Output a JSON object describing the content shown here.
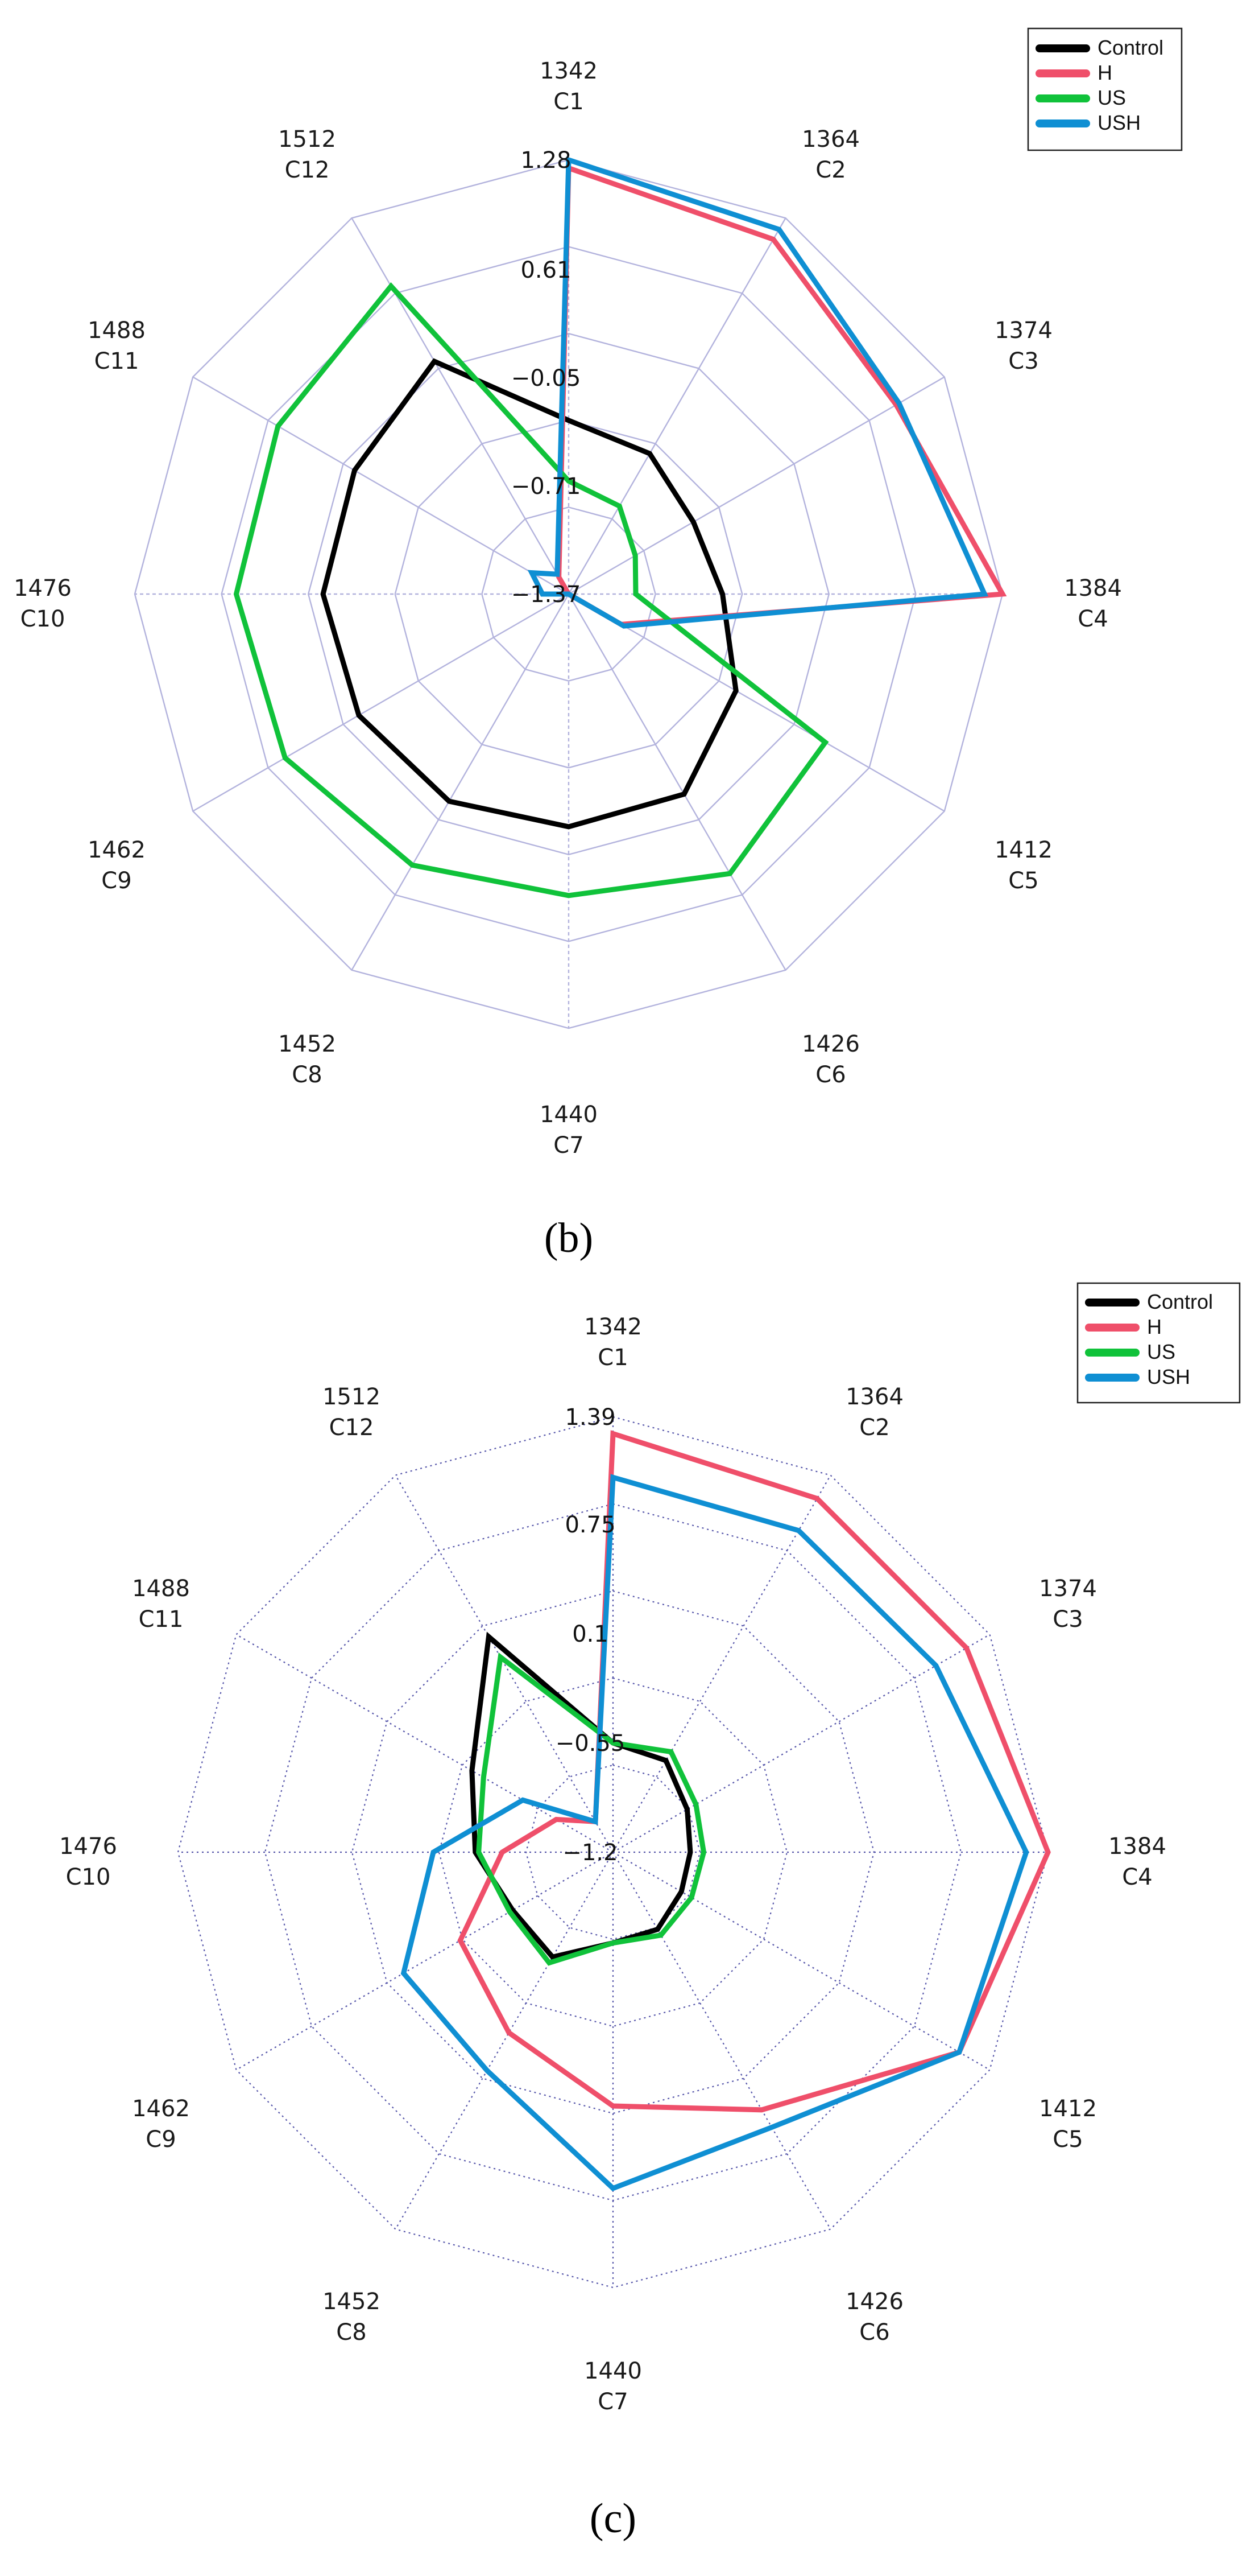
{
  "figure": {
    "panels": [
      "b",
      "c"
    ]
  },
  "chart_data": [
    {
      "panel_label": "(b)",
      "panel_letter": "b",
      "type": "radar",
      "title": "",
      "axes": [
        {
          "id": "C1",
          "wavenumber": "1342"
        },
        {
          "id": "C2",
          "wavenumber": "1364"
        },
        {
          "id": "C3",
          "wavenumber": "1374"
        },
        {
          "id": "C4",
          "wavenumber": "1384"
        },
        {
          "id": "C5",
          "wavenumber": "1412"
        },
        {
          "id": "C6",
          "wavenumber": "1426"
        },
        {
          "id": "C7",
          "wavenumber": "1440"
        },
        {
          "id": "C8",
          "wavenumber": "1452"
        },
        {
          "id": "C9",
          "wavenumber": "1462"
        },
        {
          "id": "C10",
          "wavenumber": "1476"
        },
        {
          "id": "C11",
          "wavenumber": "1488"
        },
        {
          "id": "C12",
          "wavenumber": "1512"
        }
      ],
      "rmin": -1.37,
      "rmax": 1.28,
      "ticks": [
        1.28,
        0.61,
        -0.05,
        -0.71,
        -1.37
      ],
      "tick_labels": [
        "1.28",
        "0.61",
        "−0.05",
        "−0.71",
        "−1.37"
      ],
      "grid_rings": 5,
      "legend": {
        "position": "top-right",
        "entries": [
          "Control",
          "H",
          "US",
          "USH"
        ]
      },
      "series": [
        {
          "name": "Control",
          "color": "#000000",
          "values": [
            -0.31,
            -0.38,
            -0.49,
            -0.43,
            -0.19,
            0.04,
            0.05,
            0.09,
            0.11,
            0.13,
            0.14,
            0.27
          ]
        },
        {
          "name": "H",
          "color": "#ef4f6a",
          "values": [
            1.23,
            1.13,
            0.94,
            1.28,
            -1.0,
            -1.37,
            -1.37,
            -1.37,
            -1.37,
            -1.37,
            -1.37,
            -1.25
          ]
        },
        {
          "name": "US",
          "color": "#10c23a",
          "values": [
            -0.68,
            -0.75,
            -0.9,
            -0.96,
            0.44,
            0.6,
            0.47,
            0.54,
            0.63,
            0.66,
            0.68,
            0.8
          ]
        },
        {
          "name": "USH",
          "color": "#0f8fd3",
          "values": [
            1.28,
            1.2,
            0.96,
            1.17,
            -0.98,
            -1.37,
            -1.37,
            -1.37,
            -1.37,
            -1.21,
            -1.11,
            -1.23
          ]
        }
      ]
    },
    {
      "panel_label": "(c)",
      "panel_letter": "c",
      "type": "radar",
      "title": "",
      "axes": [
        {
          "id": "C1",
          "wavenumber": "1342"
        },
        {
          "id": "C2",
          "wavenumber": "1364"
        },
        {
          "id": "C3",
          "wavenumber": "1374"
        },
        {
          "id": "C4",
          "wavenumber": "1384"
        },
        {
          "id": "C5",
          "wavenumber": "1412"
        },
        {
          "id": "C6",
          "wavenumber": "1426"
        },
        {
          "id": "C7",
          "wavenumber": "1440"
        },
        {
          "id": "C8",
          "wavenumber": "1452"
        },
        {
          "id": "C9",
          "wavenumber": "1462"
        },
        {
          "id": "C10",
          "wavenumber": "1476"
        },
        {
          "id": "C11",
          "wavenumber": "1488"
        },
        {
          "id": "C12",
          "wavenumber": "1512"
        }
      ],
      "rmin": -1.2,
      "rmax": 1.39,
      "ticks": [
        1.39,
        0.75,
        0.1,
        -0.55,
        -1.2
      ],
      "tick_labels": [
        "1.39",
        "0.75",
        "0.1",
        "−0.55",
        "−1.2"
      ],
      "grid_rings": 5,
      "legend": {
        "position": "top-right",
        "entries": [
          "Control",
          "H",
          "US",
          "USH"
        ]
      },
      "series": [
        {
          "name": "Control",
          "color": "#000000",
          "values": [
            -0.55,
            -0.57,
            -0.69,
            -0.74,
            -0.73,
            -0.67,
            -0.66,
            -0.48,
            -0.51,
            -0.38,
            -0.23,
            0.28
          ]
        },
        {
          "name": "H",
          "color": "#ef4f6a",
          "values": [
            1.29,
            1.23,
            1.23,
            1.39,
            1.18,
            0.57,
            0.31,
            0.04,
            -0.15,
            -0.54,
            -0.81,
            -0.99
          ]
        },
        {
          "name": "US",
          "color": "#10c23a",
          "values": [
            -0.55,
            -0.51,
            -0.63,
            -0.66,
            -0.66,
            -0.63,
            -0.66,
            -0.44,
            -0.49,
            -0.4,
            -0.31,
            0.14
          ]
        },
        {
          "name": "USH",
          "color": "#0f8fd3",
          "values": [
            1.03,
            1.01,
            1.02,
            1.26,
            1.18,
            0.69,
            0.8,
            0.3,
            0.24,
            -0.13,
            -0.58,
            -0.99
          ]
        }
      ]
    }
  ]
}
